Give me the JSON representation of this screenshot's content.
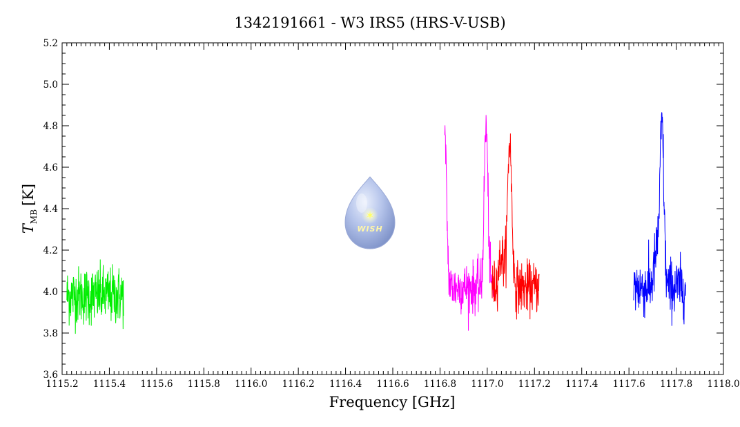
{
  "chart_data": {
    "type": "line",
    "title": "1342191661 - W3 IRS5 (HRS-V-USB)",
    "xlabel": "Frequency [GHz]",
    "ylabel_main": "T",
    "ylabel_sub": "MB",
    "ylabel_unit": "[K]",
    "xlim": [
      1115.2,
      1118.0
    ],
    "ylim": [
      3.6,
      5.2
    ],
    "x_ticks": [
      "1115.2",
      "1115.4",
      "1115.6",
      "1115.8",
      "1116.0",
      "1116.2",
      "1116.4",
      "1116.6",
      "1116.8",
      "1117.0",
      "1117.2",
      "1117.4",
      "1117.6",
      "1117.8",
      "1118.0"
    ],
    "y_ticks": [
      "3.6",
      "3.8",
      "4.0",
      "4.2",
      "4.4",
      "4.6",
      "4.8",
      "5.0",
      "5.2"
    ],
    "grid": false,
    "logo": {
      "text": "WISH"
    },
    "series": [
      {
        "color": "#00ee00",
        "x_range": [
          1115.22,
          1115.46
        ],
        "baseline": 3.98,
        "noise": 0.07,
        "peaks": []
      },
      {
        "color": "#ff00ff",
        "x_range": [
          1116.82,
          1117.03
        ],
        "baseline": 4.02,
        "noise": 0.06,
        "peaks": [
          {
            "x": 1116.82,
            "height": 0.72,
            "width": 0.008
          },
          {
            "x": 1116.995,
            "height": 0.78,
            "width": 0.008
          }
        ]
      },
      {
        "color": "#ff0000",
        "x_range": [
          1117.02,
          1117.22
        ],
        "baseline": 4.02,
        "noise": 0.06,
        "peaks": [
          {
            "x": 1117.095,
            "height": 0.7,
            "width": 0.009
          },
          {
            "x": 1117.06,
            "height": 0.15,
            "width": 0.012
          }
        ]
      },
      {
        "color": "#0000ff",
        "x_range": [
          1117.62,
          1117.84
        ],
        "baseline": 4.02,
        "noise": 0.07,
        "peaks": [
          {
            "x": 1117.74,
            "height": 0.75,
            "width": 0.008
          },
          {
            "x": 1117.72,
            "height": 0.18,
            "width": 0.012
          }
        ]
      }
    ]
  }
}
